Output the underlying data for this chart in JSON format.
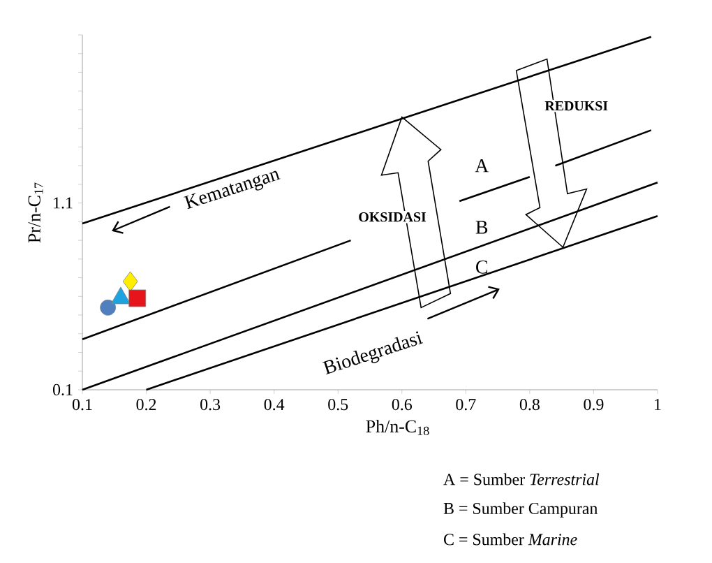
{
  "chart_data": {
    "type": "line",
    "xlabel": "Ph/n-C$_{18}$",
    "ylabel": "Pr/n-C$_{17}$",
    "xlim": [
      0.1,
      1
    ],
    "ylim": [
      0.1,
      2.0
    ],
    "xticks": [
      0.1,
      0.2,
      0.3,
      0.4,
      0.5,
      0.6,
      0.7,
      0.8,
      0.9,
      1
    ],
    "yticks": [
      0.1,
      {
        "value": 0.2,
        "label": null
      },
      {
        "value": 0.3,
        "label": null
      },
      {
        "value": 0.4,
        "label": null
      },
      {
        "value": 0.5,
        "label": null
      },
      {
        "value": 0.6,
        "label": null
      },
      {
        "value": 0.7,
        "label": null
      },
      {
        "value": 0.8,
        "label": null
      },
      {
        "value": 0.9,
        "label": null
      },
      {
        "value": 1.0,
        "label": null
      },
      1.1,
      {
        "value": 1.2,
        "label": null
      },
      {
        "value": 1.3,
        "label": null
      },
      {
        "value": 1.4,
        "label": null
      },
      {
        "value": 1.5,
        "label": null
      },
      {
        "value": 1.6,
        "label": null
      },
      {
        "value": 1.7,
        "label": null
      },
      {
        "value": 1.8,
        "label": null
      },
      {
        "value": 1.9,
        "label": null
      },
      {
        "value": 2.0,
        "label": null
      }
    ],
    "series": [
      {
        "marker": "none",
        "color": "#000000",
        "x": [
          0.1,
          0.99
        ],
        "values": [
          0.99,
          1.99
        ]
      },
      {
        "marker": "none",
        "name": "A",
        "color": "#000000",
        "x": [
          0.1,
          0.52,
          0.6,
          0.69,
          0.8,
          0.82,
          0.84,
          0.99
        ],
        "values": [
          0.37,
          0.9,
          null,
          1.11,
          1.24,
          null,
          1.3,
          1.49
        ]
      },
      {
        "marker": "none",
        "name": "B",
        "color": "#000000",
        "x": [
          0.1,
          1.0
        ],
        "values": [
          0.1,
          1.21
        ]
      },
      {
        "marker": "none",
        "name": "C",
        "color": "#000000",
        "x": [
          0.2,
          1.0
        ],
        "values": [
          0.1,
          1.03
        ]
      },
      {
        "type": "scatter",
        "marker": "circle",
        "color": "#4f7fbf",
        "x": [
          0.14
        ],
        "values": [
          0.54
        ]
      },
      {
        "type": "scatter",
        "marker": "triangle",
        "color": "#1ca3e0",
        "x": [
          0.16
        ],
        "values": [
          0.59
        ]
      },
      {
        "type": "scatter",
        "marker": "diamond",
        "color": "#ffee00",
        "x": [
          0.175
        ],
        "values": [
          0.68
        ]
      },
      {
        "type": "scatter",
        "marker": "square",
        "color": "#e8141c",
        "x": [
          0.186
        ],
        "values": [
          0.59
        ]
      }
    ],
    "annotations": [
      "Kematangan",
      "Biodegradasi",
      "OKSIDASI",
      "REDUKSI",
      "A = Sumber *Terrestrial*",
      "B = Sumber Campuran",
      "C = Sumber *Marine*"
    ]
  }
}
